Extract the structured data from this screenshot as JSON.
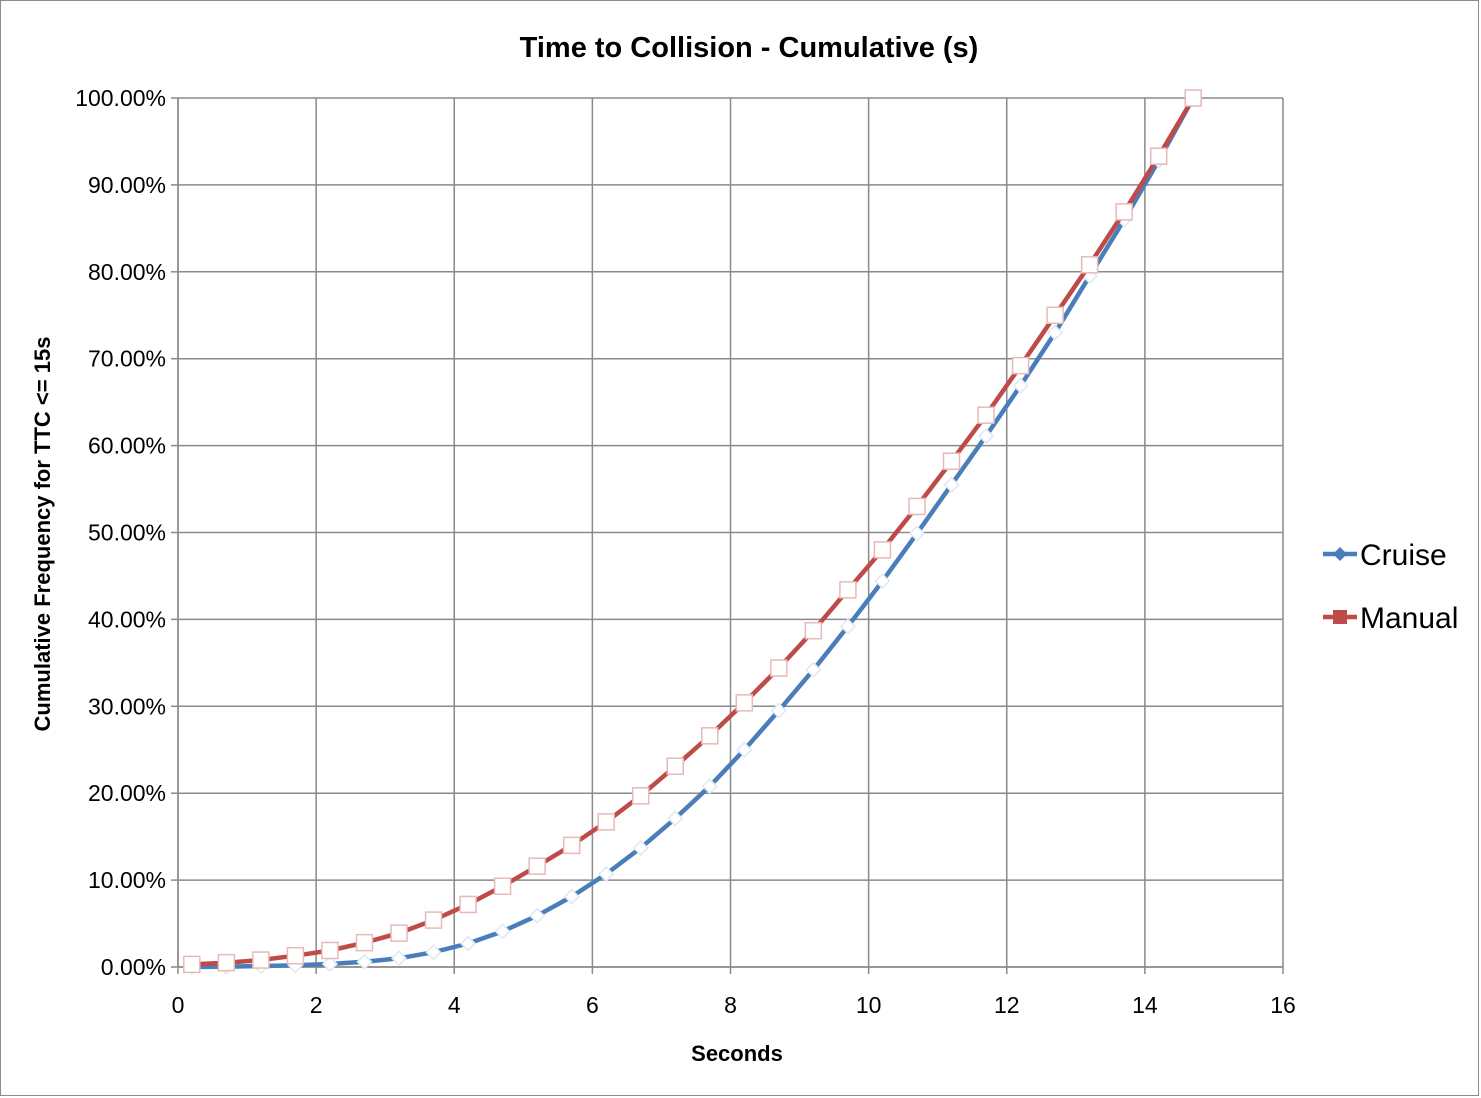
{
  "chart_data": {
    "type": "line",
    "title": "Time to Collision - Cumulative (s)",
    "xlabel": "Seconds",
    "ylabel": "Cumulative Frequency for TTC <= 15s",
    "xlim": [
      0,
      16
    ],
    "ylim": [
      0,
      100
    ],
    "x_ticks": [
      0,
      2,
      4,
      6,
      8,
      10,
      12,
      14,
      16
    ],
    "x_tick_labels": [
      "0",
      "2",
      "4",
      "6",
      "8",
      "10",
      "12",
      "14",
      "16"
    ],
    "y_ticks": [
      0,
      10,
      20,
      30,
      40,
      50,
      60,
      70,
      80,
      90,
      100
    ],
    "y_tick_labels": [
      "0.00%",
      "10.00%",
      "20.00%",
      "30.00%",
      "40.00%",
      "50.00%",
      "60.00%",
      "70.00%",
      "80.00%",
      "90.00%",
      "100.00%"
    ],
    "grid": true,
    "legend_position": "right",
    "series": [
      {
        "name": "Cruise",
        "color": "#4a7ebb",
        "marker": "diamond",
        "x": [
          0.2,
          0.7,
          1.2,
          1.7,
          2.2,
          2.7,
          3.2,
          3.7,
          4.2,
          4.7,
          5.2,
          5.7,
          6.2,
          6.7,
          7.2,
          7.7,
          8.2,
          8.7,
          9.2,
          9.7,
          10.2,
          10.7,
          11.2,
          11.7,
          12.2,
          12.7,
          13.2,
          13.7,
          14.2,
          14.7
        ],
        "values": [
          0.0,
          0.05,
          0.1,
          0.2,
          0.35,
          0.6,
          1.0,
          1.7,
          2.7,
          4.1,
          5.9,
          8.1,
          10.7,
          13.7,
          17.1,
          20.8,
          25.0,
          29.5,
          34.2,
          39.2,
          44.4,
          49.9,
          55.5,
          61.1,
          66.9,
          73.0,
          79.5,
          86.0,
          92.8,
          100.0
        ]
      },
      {
        "name": "Manual",
        "color": "#be4b48",
        "marker": "square",
        "x": [
          0.2,
          0.7,
          1.2,
          1.7,
          2.2,
          2.7,
          3.2,
          3.7,
          4.2,
          4.7,
          5.2,
          5.7,
          6.2,
          6.7,
          7.2,
          7.7,
          8.2,
          8.7,
          9.2,
          9.7,
          10.2,
          10.7,
          11.2,
          11.7,
          12.2,
          12.7,
          13.2,
          13.7,
          14.2,
          14.7
        ],
        "values": [
          0.3,
          0.5,
          0.8,
          1.3,
          1.9,
          2.8,
          3.9,
          5.4,
          7.2,
          9.3,
          11.6,
          14.0,
          16.7,
          19.7,
          23.1,
          26.6,
          30.4,
          34.4,
          38.7,
          43.4,
          48.0,
          53.0,
          58.2,
          63.5,
          69.2,
          75.0,
          80.8,
          86.9,
          93.3,
          100.0
        ]
      }
    ]
  }
}
